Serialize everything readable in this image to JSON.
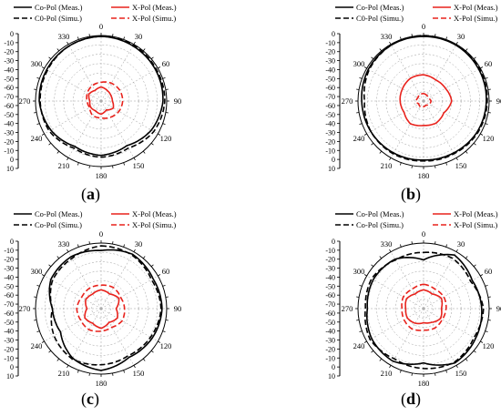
{
  "colors": {
    "copol": "#000000",
    "xpol": "#e8221c",
    "grid": "#9a9a9a",
    "axis": "#000000"
  },
  "legend": {
    "a": {
      "copol_meas": "Co-Pol (Meas.)",
      "copol_simu": "C0-Pol (Simu.)",
      "xpol_meas": "X-Pol (Meas.)",
      "xpol_simu": "X-Pol (Simu.)"
    },
    "b": {
      "copol_meas": "Co-Pol (Meas.)",
      "copol_simu": "C0-Pol (Simu.)",
      "xpol_meas": "X-Pol (Meas.)",
      "xpol_simu": "X-Pol (Simu.)"
    },
    "c": {
      "copol_meas": "Co-Pol (Meas.)",
      "copol_simu": "Co-Pol (Simu.)",
      "xpol_meas": "X-Pol (Meas.)",
      "xpol_simu": "X-Pol (Simu.)"
    },
    "d": {
      "copol_meas": "Co-Pol (Meas.)",
      "copol_simu": "Co-Pol (Simu.)",
      "xpol_meas": "X-Pol (Meas.)",
      "xpol_simu": "X-Pol (Simu.)"
    }
  },
  "panel_labels": {
    "a": "a",
    "b": "b",
    "c": "c",
    "d": "d"
  },
  "chart_data": [
    {
      "id": "a",
      "type": "polar-line",
      "radial_ticks": [
        "0",
        "-10",
        "-20",
        "-30",
        "-40",
        "-50",
        "-60",
        "-70",
        "-60",
        "-50",
        "-40",
        "-30",
        "-20",
        "-10",
        "0",
        "10"
      ],
      "angle_ticks": [
        "0",
        "30",
        "60",
        "90",
        "120",
        "150",
        "180",
        "210",
        "240",
        "270",
        "300",
        "330"
      ],
      "rlim": [
        -70,
        0
      ],
      "rgrid_step_db": 10,
      "series": [
        {
          "key": "copol_meas",
          "style": "solid",
          "color": "#000000",
          "angles": [
            0,
            30,
            60,
            90,
            120,
            150,
            180,
            210,
            240,
            270,
            300,
            330
          ],
          "values": [
            -1,
            -2,
            -3,
            -4,
            -8,
            -15,
            -12,
            -14,
            -8,
            -4,
            -3,
            -2
          ]
        },
        {
          "key": "copol_simu",
          "style": "dashed",
          "color": "#000000",
          "angles": [
            0,
            30,
            60,
            90,
            120,
            150,
            180,
            210,
            240,
            270,
            300,
            330
          ],
          "values": [
            -1,
            -1,
            -2,
            -2,
            -5,
            -12,
            -10,
            -12,
            -6,
            -5,
            -4,
            -2
          ]
        },
        {
          "key": "xpol_meas",
          "style": "solid",
          "color": "#e8221c",
          "angles": [
            0,
            30,
            60,
            90,
            120,
            150,
            180,
            210,
            240,
            270,
            300,
            330
          ],
          "values": [
            -55,
            -57,
            -58,
            -58,
            -55,
            -59,
            -56,
            -58,
            -57,
            -58,
            -55,
            -57
          ]
        },
        {
          "key": "xpol_simu",
          "style": "dashed",
          "color": "#e8221c",
          "angles": [
            0,
            30,
            60,
            90,
            120,
            150,
            180,
            210,
            240,
            270,
            300,
            330
          ],
          "values": [
            -50,
            -48,
            -47,
            -47,
            -48,
            -50,
            -52,
            -52,
            -56,
            -55,
            -53,
            -51
          ]
        }
      ]
    },
    {
      "id": "b",
      "type": "polar-line",
      "radial_ticks": [
        "0",
        "-10",
        "-20",
        "-30",
        "-40",
        "-50",
        "-60",
        "-70",
        "-60",
        "-50",
        "-40",
        "-30",
        "-20",
        "-10",
        "0",
        "10"
      ],
      "angle_ticks": [
        "0",
        "30",
        "60",
        "90",
        "120",
        "150",
        "180",
        "210",
        "240",
        "270",
        "300",
        "330"
      ],
      "rlim": [
        -70,
        0
      ],
      "rgrid_step_db": 10,
      "series": [
        {
          "key": "copol_meas",
          "style": "solid",
          "color": "#000000",
          "angles": [
            0,
            30,
            60,
            90,
            120,
            150,
            180,
            210,
            240,
            270,
            300,
            330
          ],
          "values": [
            -1,
            -1,
            -2,
            -3,
            -4,
            -6,
            -7,
            -6,
            -5,
            -4,
            -2,
            -1
          ]
        },
        {
          "key": "copol_simu",
          "style": "dashed",
          "color": "#000000",
          "angles": [
            0,
            30,
            60,
            90,
            120,
            150,
            180,
            210,
            240,
            270,
            300,
            330
          ],
          "values": [
            0,
            -1,
            -1,
            -2,
            -3,
            -5,
            -6,
            -5,
            -5,
            -7,
            -3,
            -1
          ]
        },
        {
          "key": "xpol_meas",
          "style": "solid",
          "color": "#e8221c",
          "angles": [
            0,
            30,
            60,
            90,
            120,
            150,
            180,
            210,
            240,
            270,
            300,
            330
          ],
          "values": [
            -42,
            -44,
            -43,
            -40,
            -45,
            -43,
            -44,
            -42,
            -46,
            -45,
            -44,
            -42
          ]
        },
        {
          "key": "xpol_simu",
          "style": "dashed",
          "color": "#e8221c",
          "angles": [
            0,
            30,
            60,
            90,
            120,
            150,
            180,
            210,
            240,
            270,
            300,
            330
          ],
          "values": [
            -62,
            -63,
            -64,
            -62,
            -63,
            -65,
            -64,
            -63,
            -64,
            -62,
            -63,
            -62
          ]
        }
      ]
    },
    {
      "id": "c",
      "type": "polar-line",
      "radial_ticks": [
        "0",
        "-10",
        "-20",
        "-30",
        "-40",
        "-50",
        "-60",
        "-70",
        "-60",
        "-50",
        "-40",
        "-30",
        "-20",
        "-10",
        "0",
        "10"
      ],
      "angle_ticks": [
        "0",
        "30",
        "60",
        "90",
        "120",
        "150",
        "180",
        "210",
        "240",
        "270",
        "300",
        "330"
      ],
      "rlim": [
        -70,
        0
      ],
      "rgrid_step_db": 10,
      "series": [
        {
          "key": "copol_meas",
          "style": "solid",
          "color": "#000000",
          "angles": [
            0,
            30,
            60,
            90,
            120,
            150,
            180,
            210,
            240,
            270,
            300,
            330
          ],
          "values": [
            -8,
            -3,
            -6,
            -5,
            -7,
            -10,
            -4,
            -9,
            -20,
            -18,
            -8,
            -6
          ]
        },
        {
          "key": "copol_simu",
          "style": "dashed",
          "color": "#000000",
          "angles": [
            0,
            30,
            60,
            90,
            120,
            150,
            180,
            210,
            240,
            270,
            300,
            330
          ],
          "values": [
            -3,
            -4,
            -8,
            -6,
            -9,
            -12,
            -10,
            -8,
            -12,
            -18,
            -10,
            -8
          ]
        },
        {
          "key": "xpol_meas",
          "style": "solid",
          "color": "#e8221c",
          "angles": [
            0,
            30,
            60,
            90,
            120,
            150,
            180,
            210,
            240,
            270,
            300,
            330
          ],
          "values": [
            -50,
            -52,
            -48,
            -54,
            -50,
            -53,
            -49,
            -52,
            -50,
            -55,
            -51,
            -52
          ]
        },
        {
          "key": "xpol_simu",
          "style": "dashed",
          "color": "#e8221c",
          "angles": [
            0,
            30,
            60,
            90,
            120,
            150,
            180,
            210,
            240,
            270,
            300,
            330
          ],
          "values": [
            -45,
            -44,
            -46,
            -45,
            -44,
            -47,
            -46,
            -44,
            -45,
            -44,
            -46,
            -45
          ]
        }
      ]
    },
    {
      "id": "d",
      "type": "polar-line",
      "radial_ticks": [
        "0",
        "-10",
        "-20",
        "-30",
        "-40",
        "-50",
        "-60",
        "-70",
        "-60",
        "-50",
        "-40",
        "-30",
        "-20",
        "-10",
        "0",
        "10"
      ],
      "angle_ticks": [
        "0",
        "30",
        "60",
        "90",
        "120",
        "150",
        "180",
        "210",
        "240",
        "270",
        "300",
        "330"
      ],
      "rlim": [
        -70,
        0
      ],
      "rgrid_step_db": 10,
      "series": [
        {
          "key": "copol_meas",
          "style": "solid",
          "color": "#000000",
          "angles": [
            0,
            30,
            60,
            90,
            120,
            150,
            180,
            210,
            240,
            270,
            300,
            330
          ],
          "values": [
            -18,
            -4,
            -10,
            -8,
            -6,
            -3,
            -12,
            -5,
            -6,
            -10,
            -8,
            -9
          ]
        },
        {
          "key": "copol_simu",
          "style": "dashed",
          "color": "#000000",
          "angles": [
            0,
            30,
            60,
            90,
            120,
            150,
            180,
            210,
            240,
            270,
            300,
            330
          ],
          "values": [
            -10,
            -8,
            -12,
            -6,
            -8,
            -4,
            -6,
            -8,
            -4,
            -8,
            -6,
            -10
          ]
        },
        {
          "key": "xpol_meas",
          "style": "solid",
          "color": "#e8221c",
          "angles": [
            0,
            30,
            60,
            90,
            120,
            150,
            180,
            210,
            240,
            270,
            300,
            330
          ],
          "values": [
            -50,
            -52,
            -48,
            -51,
            -49,
            -53,
            -55,
            -52,
            -50,
            -51,
            -49,
            -52
          ]
        },
        {
          "key": "xpol_simu",
          "style": "dashed",
          "color": "#e8221c",
          "angles": [
            0,
            30,
            60,
            90,
            120,
            150,
            180,
            210,
            240,
            270,
            300,
            330
          ],
          "values": [
            -44,
            -46,
            -45,
            -46,
            -47,
            -46,
            -47,
            -45,
            -46,
            -47,
            -45,
            -46
          ]
        }
      ]
    }
  ]
}
